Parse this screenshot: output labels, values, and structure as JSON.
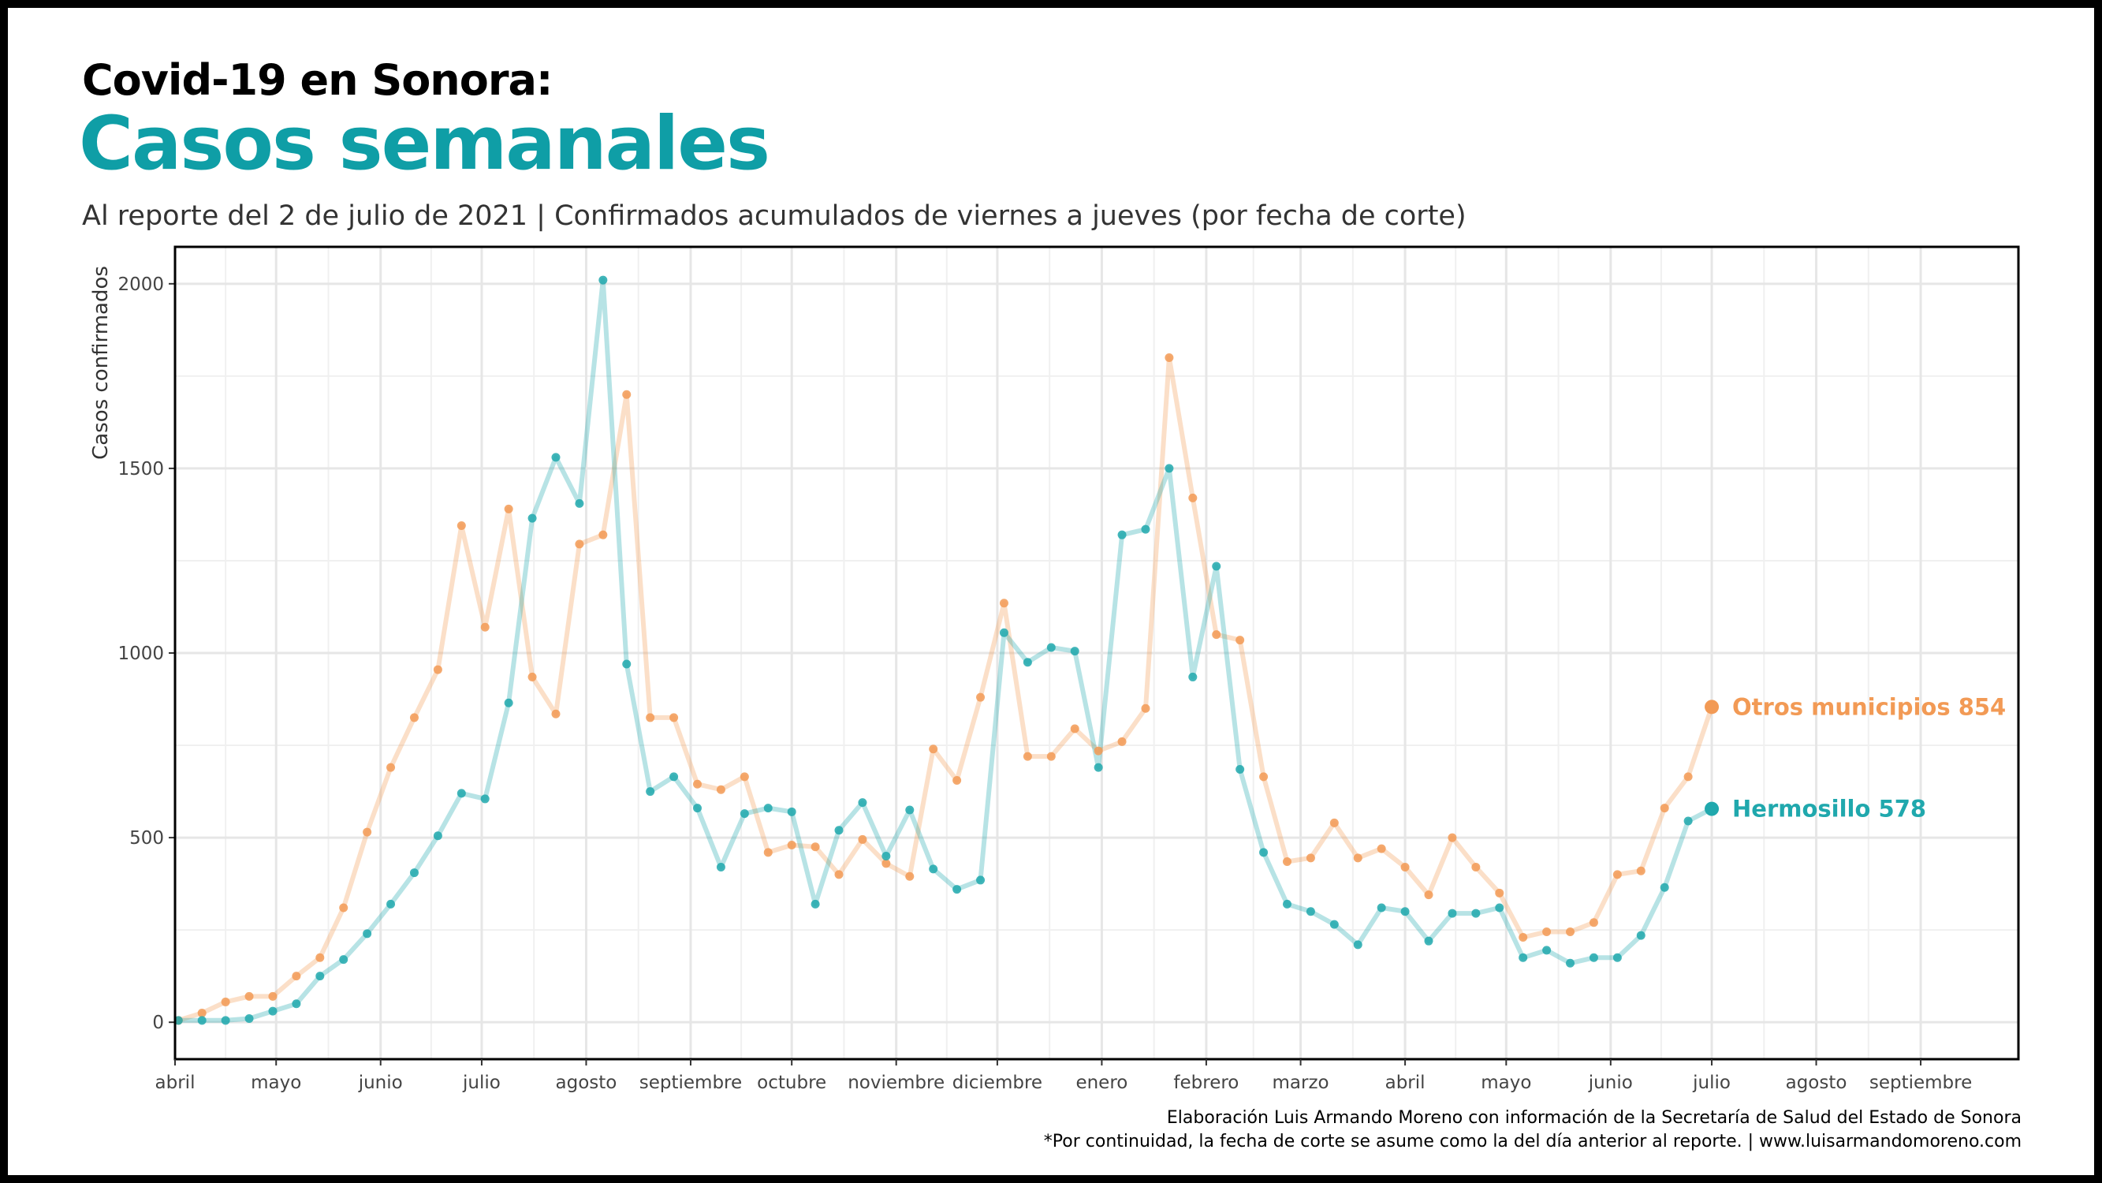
{
  "header": {
    "title": "Covid-19 en Sonora:",
    "headline": "Casos semanales",
    "subtitle": "Al reporte del 2 de julio de 2021 | Confirmados acumulados de viernes a jueves (por fecha de corte)"
  },
  "caption": {
    "line1": "Elaboración Luis Armando Moreno con información de la Secretaría de Salud del Estado de Sonora",
    "line2": "*Por continuidad, la fecha de corte se asume como la del día anterior al reporte. | www.luisarmandomoreno.com"
  },
  "colors": {
    "hermosillo": "#20a8ad",
    "otros": "#f29a55",
    "grid": "#e6e6e6",
    "frame": "#000000"
  },
  "chart_data": {
    "type": "line",
    "ylabel": "Casos confirmados",
    "xlabel": "",
    "x_start": "2020-04-01",
    "x_end": "2021-09-30",
    "ylim": [
      -100,
      2100
    ],
    "yticks": [
      0,
      500,
      1000,
      1500,
      2000
    ],
    "grid": true,
    "legend": "direct labels at line ends",
    "xticks": [
      {
        "date": "2020-04-01",
        "label": "abril"
      },
      {
        "date": "2020-05-01",
        "label": "mayo"
      },
      {
        "date": "2020-06-01",
        "label": "junio"
      },
      {
        "date": "2020-07-01",
        "label": "julio"
      },
      {
        "date": "2020-08-01",
        "label": "agosto"
      },
      {
        "date": "2020-09-01",
        "label": "septiembre"
      },
      {
        "date": "2020-10-01",
        "label": "octubre"
      },
      {
        "date": "2020-11-01",
        "label": "noviembre"
      },
      {
        "date": "2020-12-01",
        "label": "diciembre"
      },
      {
        "date": "2021-01-01",
        "label": "enero"
      },
      {
        "date": "2021-02-01",
        "label": "febrero"
      },
      {
        "date": "2021-03-01",
        "label": "marzo"
      },
      {
        "date": "2021-04-01",
        "label": "abril"
      },
      {
        "date": "2021-05-01",
        "label": "mayo"
      },
      {
        "date": "2021-06-01",
        "label": "junio"
      },
      {
        "date": "2021-07-01",
        "label": "julio"
      },
      {
        "date": "2021-08-01",
        "label": "agosto"
      },
      {
        "date": "2021-09-01",
        "label": "septiembre"
      }
    ],
    "x": [
      "2020-04-02",
      "2020-04-09",
      "2020-04-16",
      "2020-04-23",
      "2020-04-30",
      "2020-05-07",
      "2020-05-14",
      "2020-05-21",
      "2020-05-28",
      "2020-06-04",
      "2020-06-11",
      "2020-06-18",
      "2020-06-25",
      "2020-07-02",
      "2020-07-09",
      "2020-07-16",
      "2020-07-23",
      "2020-07-30",
      "2020-08-06",
      "2020-08-13",
      "2020-08-20",
      "2020-08-27",
      "2020-09-03",
      "2020-09-10",
      "2020-09-17",
      "2020-09-24",
      "2020-10-01",
      "2020-10-08",
      "2020-10-15",
      "2020-10-22",
      "2020-10-29",
      "2020-11-05",
      "2020-11-12",
      "2020-11-19",
      "2020-11-26",
      "2020-12-03",
      "2020-12-10",
      "2020-12-17",
      "2020-12-24",
      "2020-12-31",
      "2021-01-07",
      "2021-01-14",
      "2021-01-21",
      "2021-01-28",
      "2021-02-04",
      "2021-02-11",
      "2021-02-18",
      "2021-02-25",
      "2021-03-04",
      "2021-03-11",
      "2021-03-18",
      "2021-03-25",
      "2021-04-01",
      "2021-04-08",
      "2021-04-15",
      "2021-04-22",
      "2021-04-29",
      "2021-05-06",
      "2021-05-13",
      "2021-05-20",
      "2021-05-27",
      "2021-06-03",
      "2021-06-10",
      "2021-06-17",
      "2021-06-24",
      "2021-07-01"
    ],
    "series": [
      {
        "name": "Otros municipios",
        "color": "#f29a55",
        "end_label": "Otros municipios 854",
        "values": [
          5,
          25,
          55,
          70,
          70,
          125,
          175,
          310,
          515,
          690,
          825,
          955,
          1345,
          1070,
          1390,
          935,
          835,
          1295,
          1320,
          1700,
          825,
          825,
          645,
          630,
          665,
          460,
          480,
          475,
          400,
          495,
          430,
          395,
          740,
          655,
          880,
          1135,
          720,
          720,
          795,
          735,
          760,
          850,
          1800,
          1420,
          1050,
          1035,
          665,
          435,
          445,
          540,
          445,
          470,
          420,
          345,
          500,
          420,
          350,
          230,
          245,
          245,
          270,
          400,
          410,
          580,
          665,
          854
        ]
      },
      {
        "name": "Hermosillo",
        "color": "#20a8ad",
        "end_label": "Hermosillo 578",
        "values": [
          5,
          5,
          5,
          10,
          30,
          50,
          125,
          170,
          240,
          320,
          405,
          505,
          620,
          605,
          865,
          1365,
          1530,
          1405,
          2010,
          970,
          625,
          665,
          580,
          420,
          565,
          580,
          570,
          320,
          520,
          595,
          450,
          575,
          415,
          360,
          385,
          1055,
          975,
          1015,
          1005,
          690,
          1320,
          1335,
          1500,
          935,
          1235,
          685,
          460,
          320,
          300,
          265,
          210,
          310,
          300,
          220,
          295,
          295,
          310,
          175,
          195,
          160,
          175,
          175,
          235,
          365,
          545,
          578
        ]
      }
    ]
  }
}
